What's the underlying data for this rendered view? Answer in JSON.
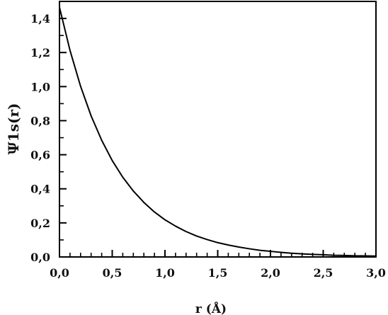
{
  "chart_data": {
    "type": "line",
    "title": "",
    "xlabel": "r (Å)",
    "ylabel": "Ψ1s(r)",
    "xlim": [
      0.0,
      3.0
    ],
    "ylim": [
      0.0,
      1.5
    ],
    "x_ticks": [
      "0,0",
      "0,5",
      "1,0",
      "1,5",
      "2,0",
      "2,5",
      "3,0"
    ],
    "x_tick_values": [
      0.0,
      0.5,
      1.0,
      1.5,
      2.0,
      2.5,
      3.0
    ],
    "y_ticks": [
      "0,0",
      "0,2",
      "0,4",
      "0,6",
      "0,8",
      "1,0",
      "1,2",
      "1,4"
    ],
    "y_tick_values": [
      0.0,
      0.2,
      0.4,
      0.6,
      0.8,
      1.0,
      1.2,
      1.4
    ],
    "grid": false,
    "legend": "none",
    "line_color": "#000000",
    "series": [
      {
        "x": [
          0.0,
          0.1,
          0.2,
          0.3,
          0.4,
          0.5,
          0.6,
          0.7,
          0.8,
          0.9,
          1.0,
          1.1,
          1.2,
          1.3,
          1.4,
          1.5,
          1.6,
          1.7,
          1.8,
          1.9,
          2.0,
          2.1,
          2.2,
          2.3,
          2.4,
          2.5,
          2.6,
          2.7,
          2.8,
          2.9,
          3.0
        ],
        "values": [
          1.466,
          1.212,
          1.002,
          0.828,
          0.685,
          0.566,
          0.468,
          0.387,
          0.32,
          0.264,
          0.218,
          0.181,
          0.149,
          0.123,
          0.102,
          0.084,
          0.07,
          0.058,
          0.048,
          0.039,
          0.033,
          0.027,
          0.022,
          0.018,
          0.015,
          0.013,
          0.01,
          0.009,
          0.007,
          0.006,
          0.005
        ]
      }
    ]
  }
}
